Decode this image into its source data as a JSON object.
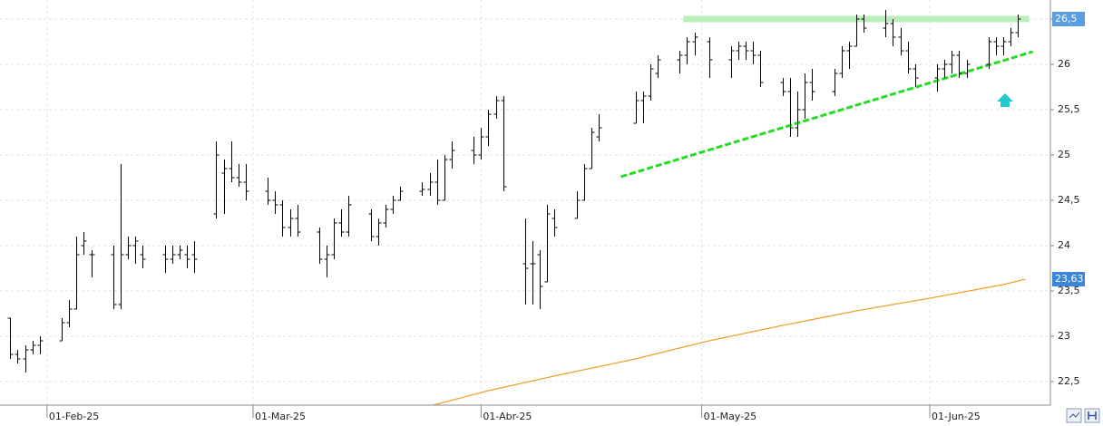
{
  "chart_data": {
    "type": "ohlc",
    "color": "#000000",
    "xlim": [
      -6.4,
      136.4
    ],
    "ylim": [
      22.24,
      26.71
    ],
    "grid": true,
    "xticks": [
      {
        "value": 0,
        "label": "01-Feb-25"
      },
      {
        "value": 28,
        "label": "01-Mar-25"
      },
      {
        "value": 59,
        "label": "01-Abr-25"
      },
      {
        "value": 89,
        "label": "01-May-25"
      },
      {
        "value": 120,
        "label": "01-Jun-25"
      }
    ],
    "yticks": [
      {
        "value": 22.5,
        "label": "22,5"
      },
      23,
      {
        "value": 23.5,
        "label": "23,5"
      },
      24,
      {
        "value": 24.5,
        "label": "24,5"
      },
      25,
      {
        "value": 25.5,
        "label": "25,5"
      },
      26,
      {
        "value": 26.5,
        "label": "26,5"
      }
    ],
    "x": [
      -5,
      -4,
      -3,
      -2,
      -1,
      2,
      3,
      4,
      5,
      6,
      9,
      10,
      11,
      12,
      13,
      16,
      17,
      18,
      19,
      20,
      23,
      24,
      25,
      26,
      27,
      30,
      31,
      32,
      33,
      34,
      37,
      38,
      39,
      40,
      41,
      44,
      45,
      46,
      47,
      48,
      51,
      52,
      53,
      54,
      55,
      58,
      59,
      60,
      61,
      62,
      65,
      66,
      67,
      68,
      69,
      72,
      73,
      74,
      75,
      80,
      81,
      82,
      83,
      86,
      87,
      88,
      90,
      93,
      94,
      95,
      96,
      97,
      100,
      101,
      102,
      103,
      104,
      107,
      108,
      109,
      110,
      111,
      114,
      115,
      116,
      117,
      118,
      121,
      122,
      123,
      124,
      125,
      128,
      129,
      130,
      131,
      132
    ],
    "open": [
      23.2,
      22.8,
      22.75,
      22.85,
      22.9,
      22.95,
      23.15,
      23.3,
      24.0,
      23.9,
      23.9,
      23.35,
      23.9,
      24.0,
      23.9,
      23.9,
      23.85,
      23.9,
      23.9,
      23.9,
      24.35,
      24.8,
      24.85,
      24.75,
      24.7,
      24.6,
      24.5,
      24.45,
      24.2,
      24.3,
      24.15,
      23.85,
      23.9,
      24.25,
      24.15,
      24.35,
      24.1,
      24.25,
      24.4,
      24.5,
      24.6,
      24.62,
      24.7,
      24.5,
      24.95,
      25.05,
      25.0,
      25.2,
      25.45,
      25.6,
      23.8,
      23.8,
      23.9,
      23.6,
      24.3,
      24.3,
      24.5,
      24.85,
      25.2,
      25.35,
      25.6,
      25.65,
      25.9,
      26.05,
      26.1,
      26.25,
      26.25,
      26.05,
      26.15,
      26.2,
      26.15,
      26.1,
      25.8,
      25.7,
      25.3,
      25.5,
      25.8,
      25.7,
      25.9,
      26.15,
      26.2,
      26.5,
      26.4,
      26.45,
      26.3,
      26.15,
      25.95,
      25.85,
      25.95,
      26.0,
      26.1,
      25.9,
      26.0,
      26.25,
      26.2,
      26.25,
      26.35
    ],
    "high": [
      23.2,
      22.85,
      22.9,
      22.95,
      23.0,
      23.2,
      23.4,
      24.1,
      24.15,
      23.95,
      24.0,
      24.9,
      24.1,
      24.1,
      24.0,
      24.0,
      24.0,
      24.0,
      24.0,
      24.05,
      25.15,
      24.95,
      25.15,
      24.9,
      24.9,
      24.75,
      24.6,
      24.5,
      24.4,
      24.45,
      24.2,
      24.0,
      24.3,
      24.4,
      24.55,
      24.4,
      24.3,
      24.45,
      24.55,
      24.65,
      24.7,
      24.8,
      24.95,
      25.0,
      25.15,
      25.2,
      25.3,
      25.5,
      25.65,
      25.65,
      24.3,
      24.05,
      23.95,
      24.45,
      24.4,
      24.6,
      24.9,
      25.3,
      25.45,
      25.7,
      25.7,
      26.0,
      26.1,
      26.15,
      26.3,
      26.35,
      26.3,
      26.2,
      26.25,
      26.25,
      26.25,
      26.15,
      25.85,
      25.85,
      25.7,
      25.9,
      25.95,
      25.95,
      26.2,
      26.25,
      26.55,
      26.55,
      26.6,
      26.5,
      26.4,
      26.25,
      26.0,
      26.0,
      26.05,
      26.15,
      26.15,
      26.05,
      26.3,
      26.3,
      26.3,
      26.4,
      26.55
    ],
    "low": [
      22.75,
      22.7,
      22.6,
      22.8,
      22.8,
      22.95,
      23.1,
      23.3,
      23.9,
      23.65,
      23.3,
      23.3,
      23.85,
      23.8,
      23.75,
      23.7,
      23.8,
      23.85,
      23.75,
      23.7,
      24.3,
      24.35,
      24.7,
      24.65,
      24.5,
      24.45,
      24.35,
      24.1,
      24.1,
      24.1,
      23.8,
      23.65,
      23.85,
      24.1,
      24.1,
      24.05,
      24.0,
      24.2,
      24.35,
      24.5,
      24.55,
      24.55,
      24.45,
      24.5,
      24.85,
      24.9,
      24.95,
      25.1,
      25.4,
      24.6,
      23.35,
      23.35,
      23.3,
      23.6,
      24.1,
      24.3,
      24.5,
      24.85,
      25.15,
      25.35,
      25.35,
      25.6,
      25.85,
      25.9,
      26.0,
      26.1,
      25.85,
      25.85,
      26.05,
      26.05,
      26.0,
      25.75,
      25.65,
      25.2,
      25.2,
      25.4,
      25.6,
      25.65,
      25.85,
      25.95,
      26.2,
      26.35,
      26.3,
      26.2,
      26.1,
      25.9,
      25.75,
      25.7,
      25.85,
      25.9,
      25.85,
      25.85,
      25.95,
      26.1,
      26.1,
      26.2,
      26.3
    ],
    "close": [
      22.8,
      22.75,
      22.85,
      22.9,
      22.95,
      23.15,
      23.3,
      23.9,
      24.05,
      23.9,
      23.35,
      23.9,
      24.0,
      24.05,
      23.85,
      23.85,
      23.9,
      23.95,
      23.85,
      23.85,
      25.0,
      24.85,
      24.75,
      24.7,
      24.6,
      24.5,
      24.45,
      24.2,
      24.3,
      24.15,
      23.85,
      23.9,
      24.25,
      24.15,
      24.45,
      24.1,
      24.25,
      24.4,
      24.5,
      24.6,
      24.62,
      24.7,
      24.5,
      24.95,
      25.05,
      25.0,
      25.2,
      25.45,
      25.6,
      24.65,
      23.75,
      23.8,
      23.55,
      24.35,
      24.2,
      24.5,
      24.85,
      25.25,
      25.3,
      25.6,
      25.65,
      25.95,
      26.05,
      26.1,
      26.25,
      26.3,
      26.05,
      26.15,
      26.2,
      26.15,
      26.1,
      25.8,
      25.7,
      25.3,
      25.5,
      25.8,
      25.7,
      25.9,
      26.15,
      26.2,
      26.5,
      26.4,
      26.45,
      26.3,
      26.15,
      25.95,
      25.85,
      25.95,
      26.0,
      26.1,
      25.9,
      26.0,
      26.25,
      26.2,
      26.25,
      26.35,
      26.5
    ],
    "ma": {
      "color": "#f0a030",
      "x": [
        52.5,
        60,
        70,
        80,
        90,
        100,
        110,
        120,
        130,
        133
      ],
      "values": [
        22.24,
        22.4,
        22.58,
        22.75,
        22.95,
        23.12,
        23.28,
        23.42,
        23.57,
        23.63
      ]
    },
    "trendlines": [
      {
        "style": "band",
        "color": "#b8f0b8",
        "x": [
          86.5,
          133.5
        ],
        "values": [
          26.5,
          26.5
        ]
      },
      {
        "style": "dashed",
        "color": "#22dd22",
        "x": [
          78,
          134
        ],
        "values": [
          24.76,
          26.14
        ]
      }
    ],
    "price_labels": [
      {
        "value": 26.5,
        "label": "26,5",
        "color": "#5b9ee0"
      },
      {
        "value": 23.63,
        "label": "23,63",
        "color": "#3a86d8"
      }
    ]
  }
}
